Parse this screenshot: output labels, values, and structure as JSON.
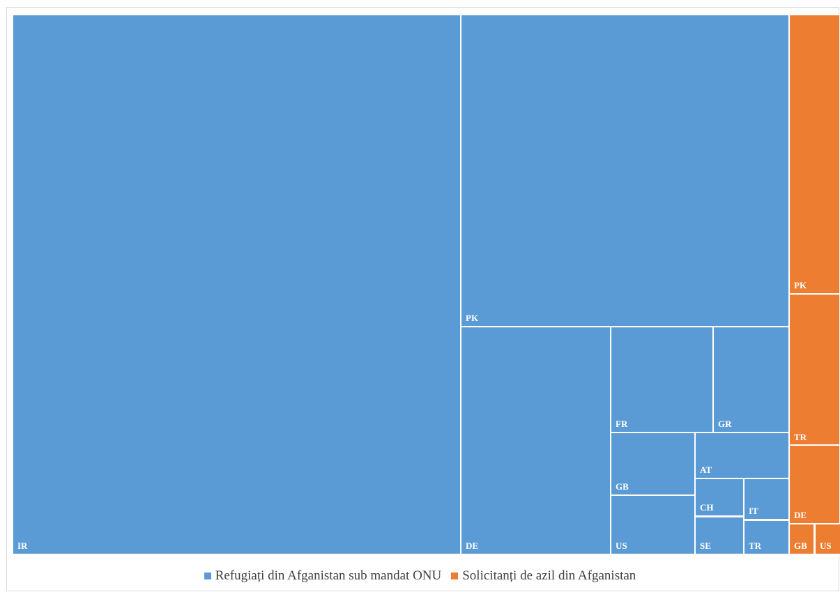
{
  "chart_data": {
    "type": "treemap",
    "series": [
      {
        "name": "Refugiați din Afganistan sub mandat ONU",
        "color": "#5B9BD5",
        "items": [
          {
            "label": "IR",
            "value": 780000
          },
          {
            "label": "PK",
            "value": 330000
          },
          {
            "label": "DE",
            "value": 110000
          },
          {
            "label": "FR",
            "value": 35000
          },
          {
            "label": "GR",
            "value": 26000
          },
          {
            "label": "GB",
            "value": 17000
          },
          {
            "label": "US",
            "value": 16000
          },
          {
            "label": "AT",
            "value": 14000
          },
          {
            "label": "CH",
            "value": 6000
          },
          {
            "label": "SE",
            "value": 6000
          },
          {
            "label": "IT",
            "value": 6000
          },
          {
            "label": "TR",
            "value": 5000
          }
        ]
      },
      {
        "name": "Solicitanți de azil din Afganistan",
        "color": "#ED7D31",
        "items": [
          {
            "label": "PK",
            "value": 46000
          },
          {
            "label": "TR",
            "value": 25000
          },
          {
            "label": "DE",
            "value": 13000
          },
          {
            "label": "GB",
            "value": 2500
          },
          {
            "label": "US",
            "value": 2500
          }
        ]
      }
    ]
  }
}
